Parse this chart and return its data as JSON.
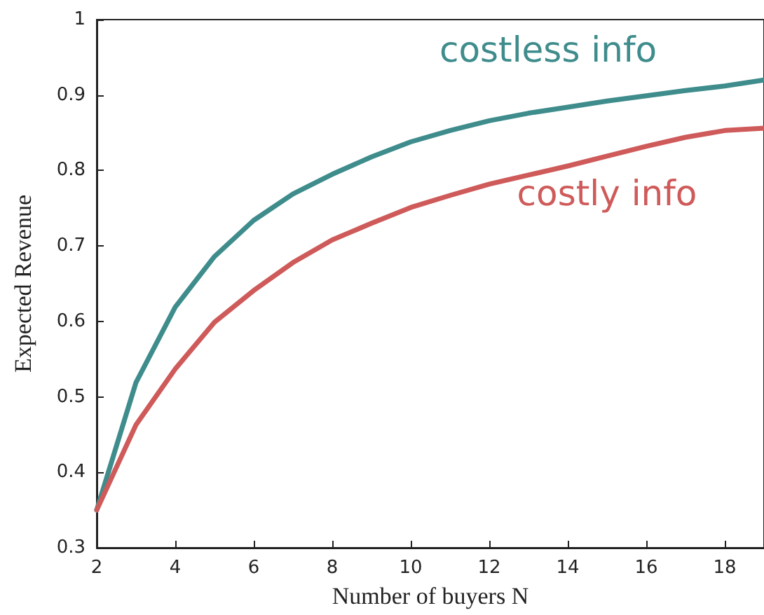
{
  "chart_data": {
    "type": "line",
    "xlabel": "Number of buyers N",
    "ylabel": "Expected Revenue",
    "x": [
      2,
      3,
      4,
      5,
      6,
      7,
      8,
      9,
      10,
      11,
      12,
      13,
      14,
      15,
      16,
      17,
      18,
      19
    ],
    "series": [
      {
        "name": "costless info",
        "color": "#3f8c8c",
        "values": [
          0.35,
          0.519,
          0.619,
          0.686,
          0.734,
          0.769,
          0.795,
          0.818,
          0.838,
          0.853,
          0.866,
          0.876,
          0.884,
          0.892,
          0.899,
          0.906,
          0.912,
          0.92
        ]
      },
      {
        "name": "costly info",
        "color": "#cf5a5a",
        "values": [
          0.35,
          0.463,
          0.537,
          0.599,
          0.641,
          0.678,
          0.708,
          0.73,
          0.751,
          0.767,
          0.782,
          0.794,
          0.806,
          0.819,
          0.832,
          0.844,
          0.853,
          0.856
        ]
      }
    ],
    "xlim": [
      2,
      19
    ],
    "xticks": [
      2,
      4,
      6,
      8,
      10,
      12,
      14,
      16,
      18
    ],
    "ylim": [
      0.3,
      1
    ],
    "yticks": [
      0.3,
      0.4,
      0.5,
      0.6,
      0.7,
      0.8,
      0.9,
      1
    ],
    "grid": false,
    "legend": false,
    "marker": "none",
    "line_style": "solid"
  }
}
